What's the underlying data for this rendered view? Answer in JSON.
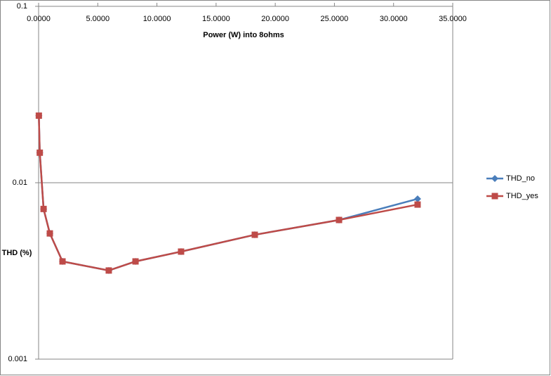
{
  "chart_data": {
    "type": "line",
    "x_label": "Power (W) into 8ohms",
    "y_label": "THD (%)",
    "x": [
      0.02,
      0.1,
      0.42,
      0.95,
      2.02,
      5.93,
      8.19,
      12.04,
      18.27,
      25.39,
      32.03
    ],
    "series": [
      {
        "name": "THD_no",
        "color": "#4a7ebb",
        "marker": "diamond",
        "values": [
          0.024,
          0.0148,
          0.0071,
          0.00516,
          0.00358,
          0.00318,
          0.00358,
          0.00407,
          0.00507,
          0.00615,
          0.0081
        ]
      },
      {
        "name": "THD_yes",
        "color": "#be4b48",
        "marker": "square",
        "values": [
          0.024,
          0.0148,
          0.0071,
          0.00516,
          0.00358,
          0.00318,
          0.00358,
          0.00407,
          0.00507,
          0.00615,
          0.00752
        ]
      }
    ],
    "xlim": [
      0,
      35
    ],
    "xticks": [
      {
        "value": 0,
        "label": "0.0000"
      },
      {
        "value": 5,
        "label": "5.0000"
      },
      {
        "value": 10,
        "label": "10.0000"
      },
      {
        "value": 15,
        "label": "15.0000"
      },
      {
        "value": 20,
        "label": "20.0000"
      },
      {
        "value": 25,
        "label": "25.0000"
      },
      {
        "value": 30,
        "label": "30.0000"
      },
      {
        "value": 35,
        "label": "35.0000"
      }
    ],
    "ylim": [
      0.001,
      0.1
    ],
    "yticks": [
      0.001,
      0.01,
      0.1
    ],
    "log_y": true,
    "grid": true,
    "legend": "right"
  }
}
